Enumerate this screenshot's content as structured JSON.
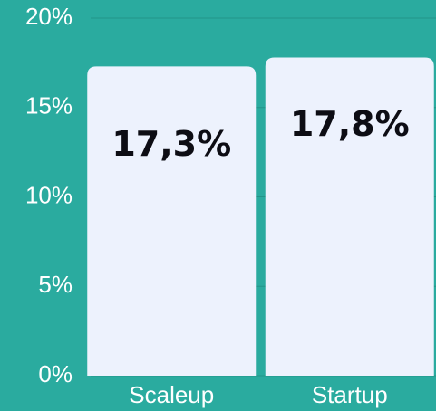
{
  "chart_data": {
    "type": "bar",
    "categories": [
      "Scaleup",
      "Startup"
    ],
    "values": [
      17.3,
      17.8
    ],
    "value_labels": [
      "17,3%",
      "17,8%"
    ],
    "color": "#edf2fd",
    "ylim": [
      0,
      20
    ],
    "yticks": [
      {
        "value": 0,
        "label": "0%"
      },
      {
        "value": 5,
        "label": "5%"
      },
      {
        "value": 10,
        "label": "10%"
      },
      {
        "value": 15,
        "label": "15%"
      },
      {
        "value": 20,
        "label": "20%"
      }
    ],
    "grid": true
  }
}
